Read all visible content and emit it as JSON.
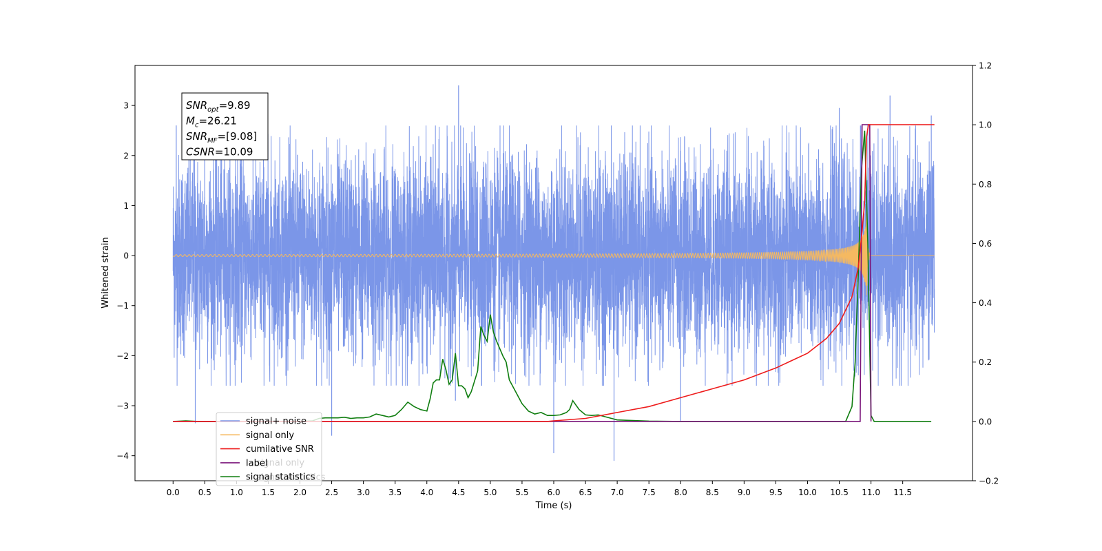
{
  "chart_data": {
    "type": "line",
    "title": "",
    "xlabel": "Time (s)",
    "ylabel": "Whitened strain",
    "xlim": [
      -0.6,
      12.6
    ],
    "ylim": [
      -4.5,
      3.8
    ],
    "y2lim": [
      -0.2,
      1.2
    ],
    "xticks": [
      0.0,
      0.5,
      1.0,
      1.5,
      2.0,
      2.5,
      3.0,
      3.5,
      4.0,
      4.5,
      5.0,
      5.5,
      6.0,
      6.5,
      7.0,
      7.5,
      8.0,
      8.5,
      9.0,
      9.5,
      10.0,
      10.5,
      11.0,
      11.5
    ],
    "xtick_labels": [
      "0.0",
      "0.5",
      "1.0",
      "1.5",
      "2.0",
      "2.5",
      "3.0",
      "3.5",
      "4.0",
      "4.5",
      "5.0",
      "5.5",
      "6.0",
      "6.5",
      "7.0",
      "7.5",
      "8.0",
      "8.5",
      "9.0",
      "9.5",
      "10.0",
      "10.5",
      "11.0",
      "11.5"
    ],
    "yticks": [
      3,
      2,
      1,
      0,
      -1,
      -2,
      -3,
      -4
    ],
    "ytick_labels": [
      "3",
      "2",
      "1",
      "0",
      "−1",
      "−2",
      "−3",
      "−4"
    ],
    "y2ticks": [
      1.2,
      1.0,
      0.8,
      0.6,
      0.4,
      0.2,
      0.0,
      -0.2
    ],
    "y2tick_labels": [
      "1.2",
      "1.0",
      "0.8",
      "0.6",
      "0.4",
      "0.2",
      "0.0",
      "−0.2"
    ],
    "legend_position": "lower-left",
    "annotation": {
      "lines": [
        {
          "base": "SNR",
          "sub": "opt",
          "value": "=9.89"
        },
        {
          "base": "M",
          "sub": "c",
          "value": "=26.21"
        },
        {
          "base": "SNR",
          "sub": "MF",
          "value": "=[9.08]"
        },
        {
          "base": "CSNR",
          "sub": "",
          "value": "=10.09"
        }
      ]
    },
    "series": [
      {
        "name": "signal+ noise",
        "axis": "left",
        "color": "#7b96e8",
        "kind": "noise",
        "x_range": [
          0.0,
          12.0
        ],
        "typical_amplitude": 1.6,
        "peak_max": 3.4,
        "peak_min": -4.1,
        "spikes": [
          [
            0.05,
            2.6
          ],
          [
            0.35,
            -3.35
          ],
          [
            0.5,
            2.75
          ],
          [
            2.5,
            -3.6
          ],
          [
            4.5,
            3.4
          ],
          [
            4.45,
            -2.9
          ],
          [
            6.0,
            -3.95
          ],
          [
            6.95,
            -4.1
          ],
          [
            8.0,
            -3.3
          ],
          [
            10.5,
            2.95
          ],
          [
            10.95,
            2.6
          ],
          [
            11.3,
            3.2
          ],
          [
            11.95,
            2.8
          ]
        ]
      },
      {
        "name": "signal only",
        "axis": "left",
        "color": "#f5b961",
        "kind": "chirp",
        "x_range": [
          0.0,
          12.0
        ],
        "merger_time": 10.93,
        "peak_amplitude": 0.95
      },
      {
        "name": "cumilative SNR",
        "axis": "right",
        "color": "#ee1c1c",
        "x": [
          0.0,
          5.9,
          6.0,
          6.5,
          7.0,
          7.5,
          8.0,
          8.5,
          9.0,
          9.5,
          10.0,
          10.3,
          10.5,
          10.7,
          10.8,
          10.85,
          10.9,
          10.93,
          10.96,
          11.0,
          11.5,
          12.0
        ],
        "values": [
          0.0,
          0.0,
          0.002,
          0.01,
          0.03,
          0.05,
          0.08,
          0.11,
          0.14,
          0.18,
          0.23,
          0.28,
          0.33,
          0.42,
          0.52,
          0.62,
          0.74,
          0.96,
          1.0,
          1.0,
          1.0,
          1.0
        ]
      },
      {
        "name": "label",
        "axis": "right",
        "color": "#7a147a",
        "x": [
          0.0,
          10.83,
          10.86,
          10.98,
          11.0
        ],
        "values": [
          0.0,
          0.0,
          1.0,
          1.0,
          0.0
        ]
      },
      {
        "name": "signal statistics",
        "axis": "right",
        "color": "#0f7d0f",
        "x": [
          0.0,
          0.2,
          0.4,
          1.0,
          2.0,
          2.2,
          2.3,
          2.4,
          2.5,
          2.6,
          2.7,
          2.8,
          2.9,
          3.0,
          3.1,
          3.2,
          3.3,
          3.4,
          3.5,
          3.6,
          3.7,
          3.8,
          3.9,
          4.0,
          4.05,
          4.1,
          4.15,
          4.2,
          4.25,
          4.3,
          4.35,
          4.4,
          4.45,
          4.5,
          4.55,
          4.6,
          4.65,
          4.7,
          4.8,
          4.85,
          4.9,
          4.95,
          5.0,
          5.05,
          5.1,
          5.2,
          5.25,
          5.3,
          5.4,
          5.5,
          5.6,
          5.7,
          5.8,
          5.9,
          6.0,
          6.1,
          6.2,
          6.25,
          6.3,
          6.4,
          6.5,
          6.6,
          6.7,
          7.0,
          7.5,
          8.0,
          10.5,
          10.6,
          10.7,
          10.75,
          10.8,
          10.85,
          10.9,
          10.95,
          11.0,
          11.05,
          11.95
        ],
        "values": [
          0.0,
          0.002,
          0.0,
          0.0,
          0.0,
          0.002,
          0.01,
          0.012,
          0.012,
          0.012,
          0.014,
          0.01,
          0.012,
          0.012,
          0.015,
          0.025,
          0.02,
          0.015,
          0.02,
          0.04,
          0.065,
          0.05,
          0.04,
          0.035,
          0.075,
          0.13,
          0.14,
          0.14,
          0.21,
          0.175,
          0.125,
          0.14,
          0.23,
          0.12,
          0.12,
          0.11,
          0.08,
          0.1,
          0.17,
          0.32,
          0.29,
          0.27,
          0.36,
          0.3,
          0.27,
          0.22,
          0.2,
          0.14,
          0.1,
          0.06,
          0.035,
          0.025,
          0.03,
          0.02,
          0.02,
          0.022,
          0.03,
          0.04,
          0.07,
          0.04,
          0.022,
          0.02,
          0.022,
          0.005,
          0.001,
          0.0,
          0.0,
          0.0,
          0.05,
          0.2,
          0.5,
          0.85,
          0.98,
          0.6,
          0.02,
          0.0,
          0.0
        ]
      }
    ],
    "legend_entries": [
      "signal+ noise",
      "signal only",
      "cumilative SNR",
      "label",
      "signal statistics"
    ],
    "legend_overlap_text": [
      "signal only",
      "signal statistics"
    ]
  }
}
